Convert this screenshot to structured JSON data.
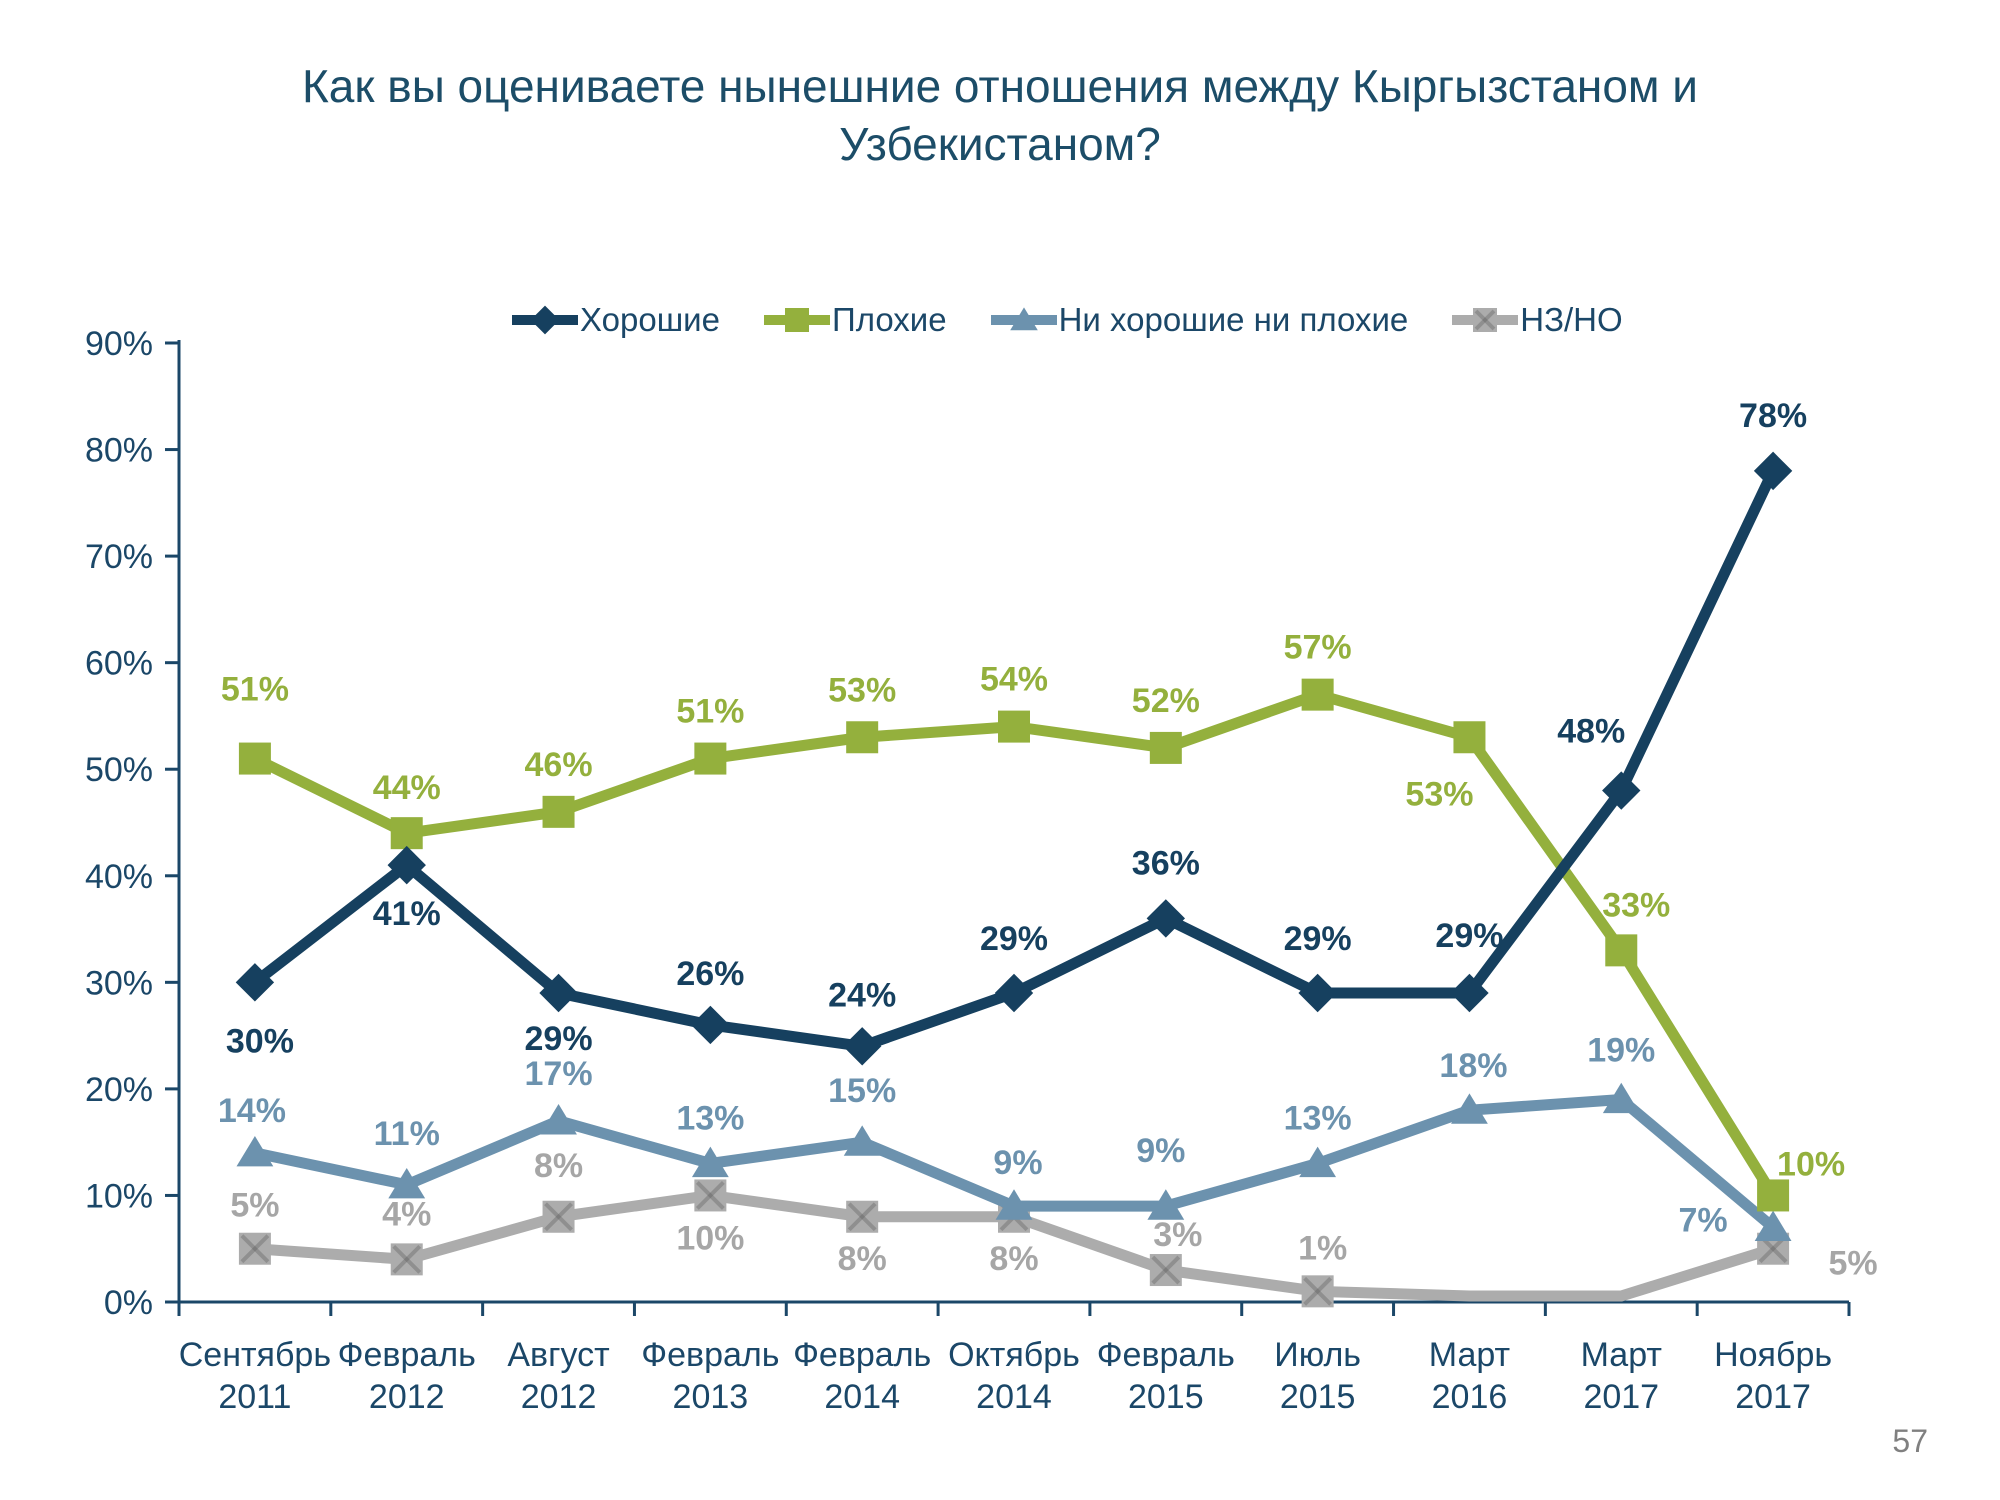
{
  "page": {
    "number": "57"
  },
  "title": "Как вы оцениваете нынешние отношения между Кыргызстаном и Узбекистаном?",
  "chart_data": {
    "type": "line",
    "title": "Как вы оцениваете нынешние отношения между Кыргызстаном и Узбекистаном?",
    "categories": [
      "Сентябрь 2011",
      "Февраль 2012",
      "Август 2012",
      "Февраль 2013",
      "Февраль 2014",
      "Октябрь 2014",
      "Февраль 2015",
      "Июль 2015",
      "Март 2016",
      "Март 2017",
      "Ноябрь 2017"
    ],
    "ylim": [
      0,
      90
    ],
    "y_ticks": [
      "0%",
      "10%",
      "20%",
      "30%",
      "40%",
      "50%",
      "60%",
      "70%",
      "80%",
      "90%"
    ],
    "grid": false,
    "legend_position": "top",
    "axis_color": "#1B4768",
    "text_color": "#1B4768",
    "series": [
      {
        "id": "good",
        "name": "Хорошие",
        "color": "#16405F",
        "marker": "diamond",
        "values": [
          30,
          41,
          29,
          26,
          24,
          29,
          36,
          29,
          29,
          48,
          78
        ],
        "labels": [
          "30%",
          "41%",
          "29%",
          "26%",
          "24%",
          "29%",
          "36%",
          "29%",
          "29%",
          "48%",
          "78%"
        ],
        "label_offsets": [
          [
            5,
            58
          ],
          [
            0,
            48
          ],
          [
            0,
            45
          ],
          [
            0,
            -52
          ],
          [
            0,
            -52
          ],
          [
            0,
            -55
          ],
          [
            0,
            -56
          ],
          [
            0,
            -55
          ],
          [
            0,
            -58
          ],
          [
            -30,
            -60
          ],
          [
            0,
            -56
          ]
        ]
      },
      {
        "id": "bad",
        "name": "Плохие",
        "color": "#94B03D",
        "marker": "square",
        "values": [
          51,
          44,
          46,
          51,
          53,
          54,
          52,
          57,
          53,
          33,
          10
        ],
        "labels": [
          "51%",
          "44%",
          "46%",
          "51%",
          "53%",
          "54%",
          "52%",
          "57%",
          "53%",
          "33%",
          "10%"
        ],
        "label_offsets": [
          [
            0,
            -70
          ],
          [
            0,
            -46
          ],
          [
            0,
            -48
          ],
          [
            0,
            -48
          ],
          [
            0,
            -48
          ],
          [
            0,
            -48
          ],
          [
            0,
            -48
          ],
          [
            0,
            -48
          ],
          [
            -30,
            56
          ],
          [
            15,
            -46
          ],
          [
            38,
            -32
          ]
        ]
      },
      {
        "id": "neither",
        "name": "Ни хорошие ни плохие",
        "color": "#6C92AE",
        "marker": "triangle",
        "values": [
          14,
          11,
          17,
          13,
          15,
          9,
          9,
          13,
          18,
          19,
          7
        ],
        "labels": [
          "14%",
          "11%",
          "17%",
          "13%",
          "15%",
          "9%",
          "9%",
          "13%",
          "18%",
          "19%",
          "7%"
        ],
        "label_offsets": [
          [
            -3,
            -43
          ],
          [
            0,
            -52
          ],
          [
            0,
            -48
          ],
          [
            0,
            -46
          ],
          [
            0,
            -52
          ],
          [
            4,
            -44
          ],
          [
            -5,
            -56
          ],
          [
            0,
            -46
          ],
          [
            4,
            -45
          ],
          [
            0,
            -50
          ],
          [
            -70,
            -8
          ]
        ]
      },
      {
        "id": "dk-na",
        "name": "НЗ/НО",
        "color": "#ACACAC",
        "label_color": "#A6A6A6",
        "marker": "square-x",
        "values": [
          5,
          4,
          8,
          10,
          8,
          8,
          3,
          1,
          0,
          0,
          5
        ],
        "labels": [
          "5%",
          "4%",
          "8%",
          "10%",
          "8%",
          "8%",
          "3%",
          "1%",
          null,
          null,
          "5%"
        ],
        "label_offsets": [
          [
            0,
            -44
          ],
          [
            0,
            -46
          ],
          [
            0,
            -52
          ],
          [
            0,
            42
          ],
          [
            0,
            41
          ],
          [
            0,
            41
          ],
          [
            12,
            -36
          ],
          [
            5,
            -44
          ],
          null,
          null,
          [
            80,
            14
          ]
        ]
      }
    ]
  }
}
